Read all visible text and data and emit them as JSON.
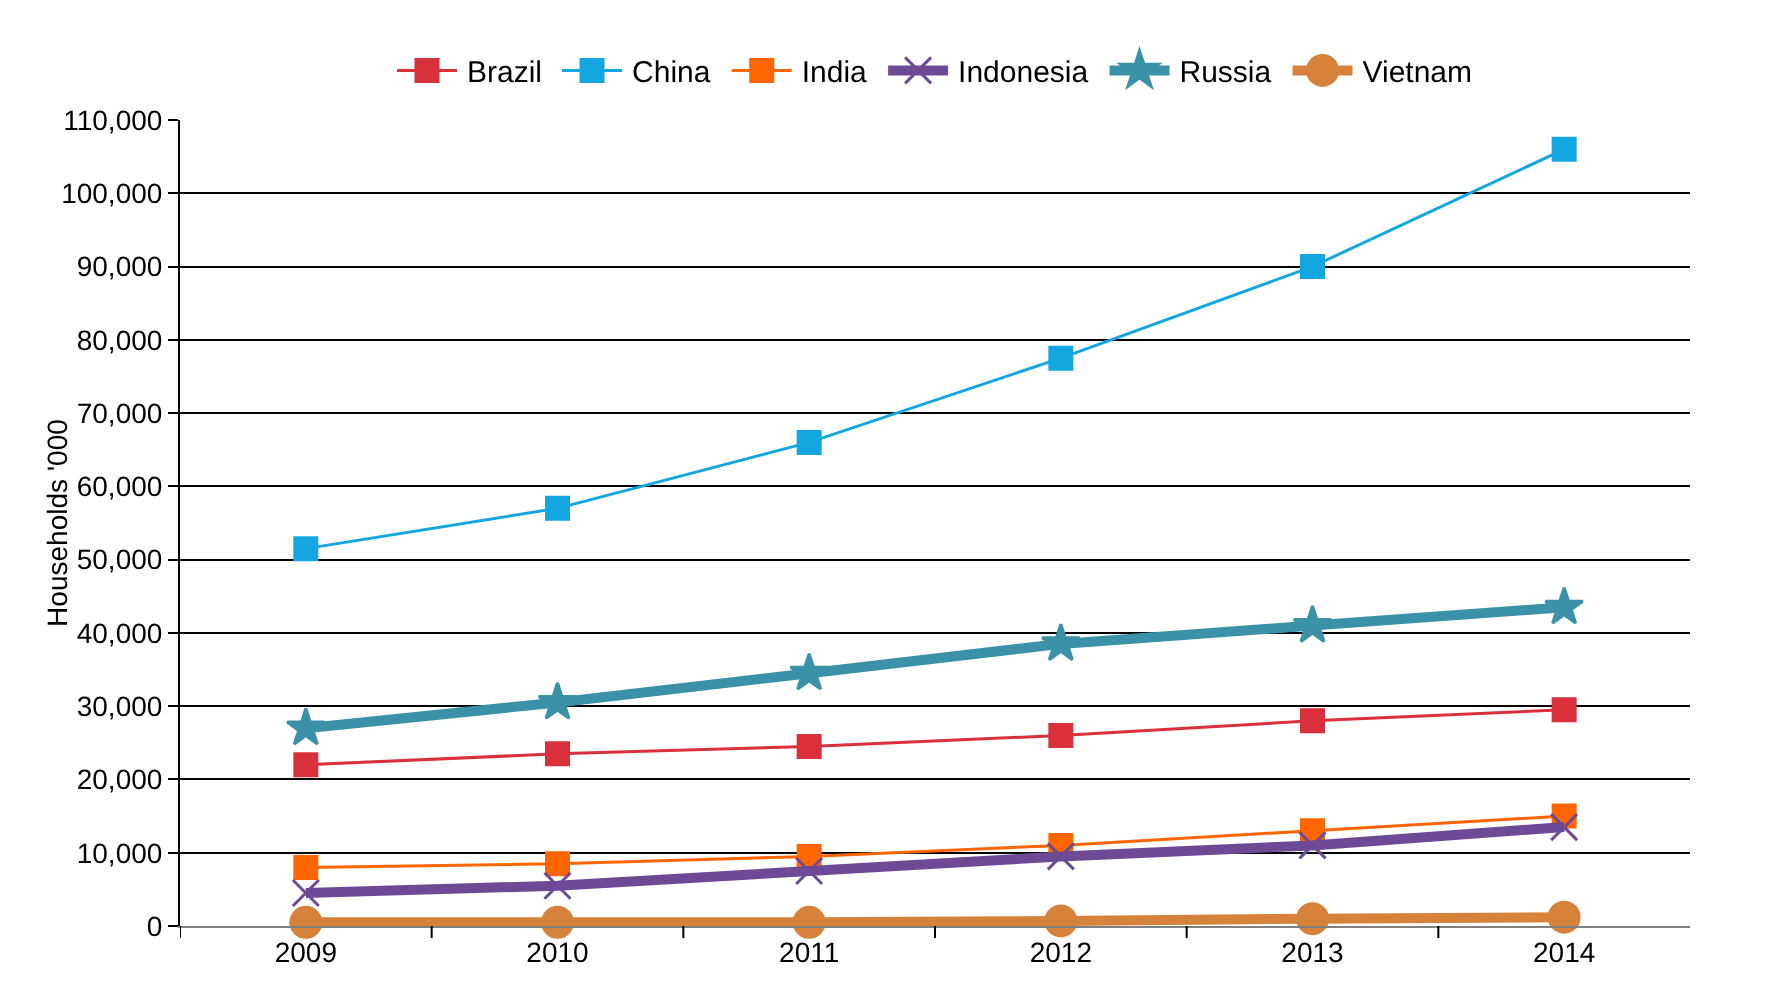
{
  "chart_data": {
    "type": "line",
    "ylabel": "Households '000",
    "categories": [
      "2009",
      "2010",
      "2011",
      "2012",
      "2013",
      "2014"
    ],
    "series": [
      {
        "name": "Brazil",
        "color": "#d9303c",
        "marker": "square",
        "values": [
          22000,
          23500,
          24500,
          26000,
          28000,
          29500
        ]
      },
      {
        "name": "China",
        "color": "#14a6e0",
        "marker": "square",
        "values": [
          51500,
          57000,
          66000,
          77500,
          90000,
          106000
        ]
      },
      {
        "name": "India",
        "color": "#ff6600",
        "marker": "square",
        "values": [
          8000,
          8500,
          9500,
          11000,
          13000,
          15000
        ]
      },
      {
        "name": "Indonesia",
        "color": "#6e4a96",
        "marker": "cross",
        "values": [
          4500,
          5500,
          7500,
          9500,
          11000,
          13500
        ]
      },
      {
        "name": "Russia",
        "color": "#3b92a8",
        "marker": "star",
        "values": [
          27000,
          30500,
          34500,
          38500,
          41000,
          43500
        ]
      },
      {
        "name": "Vietnam",
        "color": "#d6823a",
        "marker": "circle",
        "values": [
          500,
          500,
          500,
          700,
          1000,
          1200
        ]
      }
    ],
    "ylim": [
      0,
      110000
    ],
    "yticks": [
      {
        "value": 0,
        "label": "0"
      },
      {
        "value": 10000,
        "label": "10,000"
      },
      {
        "value": 20000,
        "label": "20,000"
      },
      {
        "value": 30000,
        "label": "30,000"
      },
      {
        "value": 40000,
        "label": "40,000"
      },
      {
        "value": 50000,
        "label": "50,000"
      },
      {
        "value": 60000,
        "label": "60,000"
      },
      {
        "value": 70000,
        "label": "70,000"
      },
      {
        "value": 80000,
        "label": "80,000"
      },
      {
        "value": 90000,
        "label": "90,000"
      },
      {
        "value": 100000,
        "label": "100,000"
      },
      {
        "value": 110000,
        "label": "110,000"
      }
    ],
    "grid": "y",
    "legend": "top"
  }
}
